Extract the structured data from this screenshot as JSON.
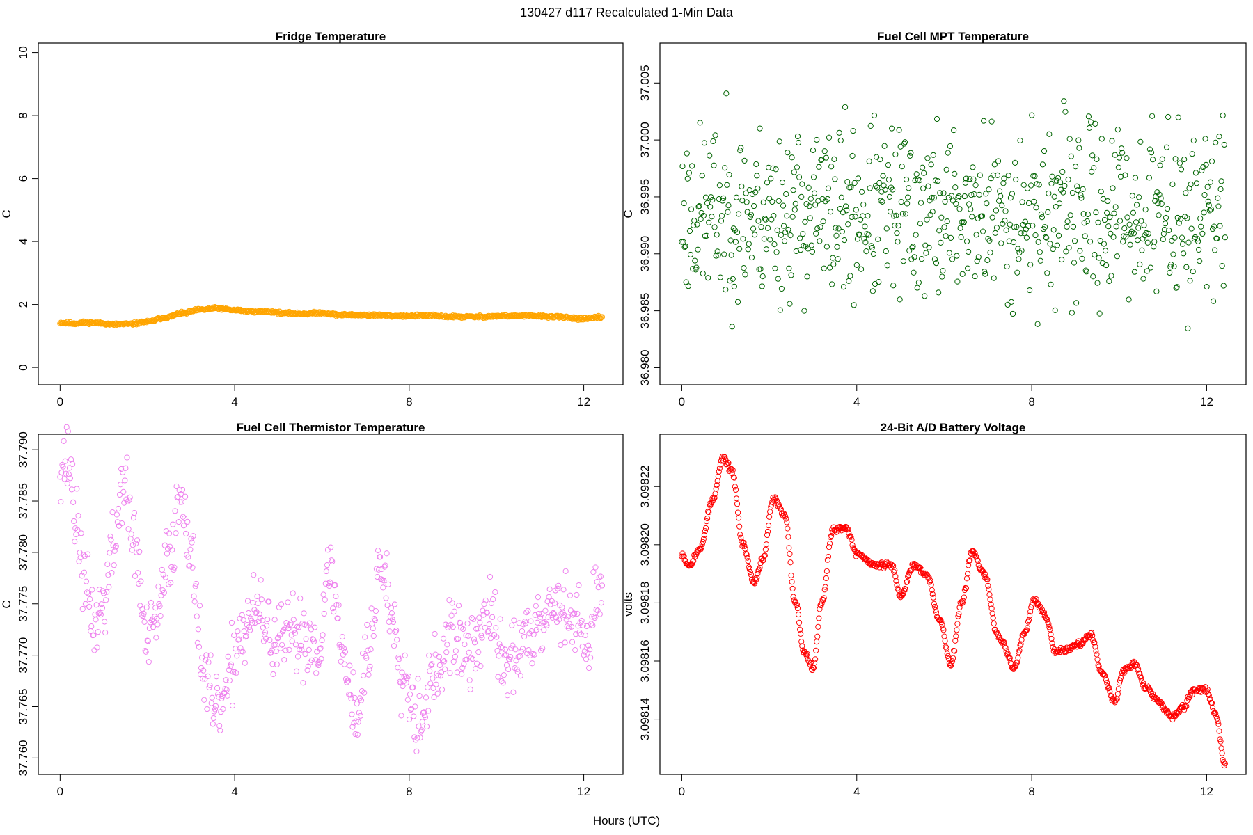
{
  "figure": {
    "title": "130427   d117   Recalculated 1-Min Data",
    "xlabel": "Hours (UTC)"
  },
  "chart_data": [
    {
      "id": "fridge",
      "type": "scatter",
      "title": "Fridge Temperature",
      "xlabel": "Hours (UTC)",
      "ylabel": "C",
      "xlim": [
        -0.5,
        12.9
      ],
      "ylim": [
        -0.55,
        10.3
      ],
      "xticks": [
        0,
        4,
        8,
        12
      ],
      "xtick_labels": [
        "0",
        "4",
        "8",
        "12"
      ],
      "yticks": [
        0,
        2,
        4,
        6,
        8,
        10
      ],
      "ytick_labels": [
        "0",
        "2",
        "4",
        "6",
        "8",
        "10"
      ],
      "color": "#FFA500",
      "marker": "open-circle",
      "n_points": 746,
      "x_range": [
        0,
        12.42
      ],
      "anchors": {
        "x": [
          0,
          0.3,
          0.6,
          0.9,
          1.2,
          1.6,
          2.0,
          2.4,
          2.8,
          3.2,
          3.6,
          4.0,
          4.4,
          4.8,
          5.2,
          5.6,
          6.0,
          6.4,
          6.8,
          7.2,
          7.6,
          8.0,
          8.4,
          8.8,
          9.2,
          9.6,
          10.0,
          10.4,
          10.8,
          11.2,
          11.6,
          12.0,
          12.42
        ],
        "y": [
          1.42,
          1.4,
          1.43,
          1.41,
          1.37,
          1.38,
          1.45,
          1.58,
          1.72,
          1.83,
          1.88,
          1.82,
          1.78,
          1.77,
          1.72,
          1.71,
          1.74,
          1.67,
          1.67,
          1.66,
          1.64,
          1.64,
          1.65,
          1.62,
          1.61,
          1.61,
          1.63,
          1.64,
          1.64,
          1.62,
          1.59,
          1.54,
          1.6
        ]
      },
      "noise": 0.02,
      "seed": 11
    },
    {
      "id": "mpt",
      "type": "scatter",
      "title": "Fuel Cell MPT Temperature",
      "xlabel": "Hours (UTC)",
      "ylabel": "C",
      "xlim": [
        -0.5,
        12.9
      ],
      "ylim": [
        36.9785,
        37.0085
      ],
      "xticks": [
        0,
        4,
        8,
        12
      ],
      "xtick_labels": [
        "0",
        "4",
        "8",
        "12"
      ],
      "yticks": [
        36.98,
        36.985,
        36.99,
        36.995,
        37.0,
        37.005
      ],
      "ytick_labels": [
        "36.980",
        "36.985",
        "36.990",
        "36.995",
        "37.000",
        "37.005"
      ],
      "color": "#006400",
      "marker": "open-circle",
      "n_points": 746,
      "x_range": [
        0,
        12.42
      ],
      "anchors": {
        "x": [
          0,
          2,
          4,
          6,
          8,
          10,
          12.42
        ],
        "y": [
          36.9935,
          36.9935,
          36.9935,
          36.9935,
          36.9935,
          36.9935,
          36.9935
        ]
      },
      "noise": 0.0038,
      "seed": 23
    },
    {
      "id": "thermistor",
      "type": "scatter",
      "title": "Fuel Cell Thermistor Temperature",
      "xlabel": "Hours (UTC)",
      "ylabel": "C",
      "xlim": [
        -0.5,
        12.9
      ],
      "ylim": [
        37.7584,
        37.7915
      ],
      "xticks": [
        0,
        4,
        8,
        12
      ],
      "xtick_labels": [
        "0",
        "4",
        "8",
        "12"
      ],
      "yticks": [
        37.76,
        37.765,
        37.77,
        37.775,
        37.78,
        37.785,
        37.79
      ],
      "ytick_labels": [
        "37.760",
        "37.765",
        "37.770",
        "37.775",
        "37.780",
        "37.785",
        "37.790"
      ],
      "color": "#EE82EE",
      "marker": "open-circle",
      "n_points": 746,
      "x_range": [
        0,
        12.42
      ],
      "anchors": {
        "x": [
          0,
          0.2,
          0.4,
          0.6,
          0.8,
          1.0,
          1.2,
          1.45,
          1.7,
          2.0,
          2.25,
          2.5,
          2.8,
          3.05,
          3.3,
          3.55,
          3.8,
          4.1,
          4.5,
          5.0,
          5.5,
          5.9,
          6.2,
          6.5,
          6.8,
          7.05,
          7.35,
          7.6,
          7.9,
          8.2,
          8.6,
          9.0,
          9.4,
          9.8,
          10.2,
          10.6,
          11.0,
          11.4,
          11.8,
          12.1,
          12.42
        ],
        "y": [
          37.789,
          37.789,
          37.782,
          37.776,
          37.773,
          37.775,
          37.78,
          37.787,
          37.781,
          37.771,
          37.774,
          37.78,
          37.786,
          37.778,
          37.768,
          37.764,
          37.766,
          37.772,
          37.774,
          37.771,
          37.772,
          37.771,
          37.778,
          37.77,
          37.764,
          37.77,
          37.779,
          37.774,
          37.768,
          37.764,
          37.768,
          37.772,
          37.77,
          37.774,
          37.769,
          37.771,
          37.774,
          37.775,
          37.773,
          37.772,
          37.777
        ]
      },
      "noise": 0.0018,
      "seed": 37
    },
    {
      "id": "battery",
      "type": "scatter",
      "title": "24-Bit A/D Battery Voltage",
      "xlabel": "Hours (UTC)",
      "ylabel": "volts",
      "xlim": [
        -0.5,
        12.9
      ],
      "ylim": [
        3.098121,
        3.098238
      ],
      "xticks": [
        0,
        4,
        8,
        12
      ],
      "xtick_labels": [
        "0",
        "4",
        "8",
        "12"
      ],
      "yticks": [
        3.09814,
        3.09816,
        3.09818,
        3.0982,
        3.09822
      ],
      "ytick_labels": [
        "3.09814",
        "3.09816",
        "3.09818",
        "3.09820",
        "3.09822"
      ],
      "color": "#FF0000",
      "marker": "open-circle",
      "n_points": 746,
      "x_range": [
        0,
        12.42
      ],
      "anchors": {
        "x": [
          0,
          0.15,
          0.4,
          0.7,
          0.95,
          1.15,
          1.4,
          1.65,
          1.85,
          2.1,
          2.35,
          2.6,
          2.8,
          3.0,
          3.2,
          3.45,
          3.75,
          4.0,
          4.4,
          4.8,
          5.0,
          5.3,
          5.6,
          5.9,
          6.15,
          6.4,
          6.65,
          6.9,
          7.25,
          7.6,
          7.85,
          8.05,
          8.3,
          8.55,
          8.8,
          9.1,
          9.35,
          9.6,
          9.9,
          10.1,
          10.35,
          10.6,
          10.9,
          11.2,
          11.45,
          11.7,
          12.0,
          12.2,
          12.42
        ],
        "y": [
          3.098197,
          3.098193,
          3.098198,
          3.098215,
          3.09823,
          3.098225,
          3.0982,
          3.098187,
          3.098195,
          3.098216,
          3.09821,
          3.09818,
          3.098163,
          3.098158,
          3.09818,
          3.098205,
          3.098206,
          3.098197,
          3.098193,
          3.098193,
          3.098182,
          3.098193,
          3.09819,
          3.098174,
          3.098159,
          3.09818,
          3.098198,
          3.09819,
          3.098168,
          3.098158,
          3.09817,
          3.098181,
          3.098176,
          3.098163,
          3.098164,
          3.098166,
          3.098169,
          3.098156,
          3.098146,
          3.098157,
          3.098159,
          3.098151,
          3.098146,
          3.098141,
          3.098144,
          3.09815,
          3.09815,
          3.098142,
          3.098124
        ]
      },
      "noise": 5e-07,
      "seed": 53
    }
  ]
}
